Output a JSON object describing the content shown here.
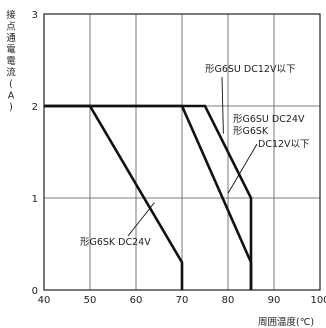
{
  "chart_data": {
    "type": "line",
    "ylabel_chars": [
      "接",
      "点",
      "通",
      "電",
      "電",
      "流",
      "(",
      "A",
      ")"
    ],
    "xlabel": "周囲温度(℃)",
    "xlim": [
      40,
      100
    ],
    "ylim": [
      0,
      3
    ],
    "x_ticks": [
      40,
      50,
      60,
      70,
      80,
      90,
      100
    ],
    "y_ticks": [
      0,
      1,
      2,
      3
    ],
    "grid": true,
    "series": [
      {
        "name": "形G6SK DC24V",
        "x": [
          40,
          50,
          70,
          70
        ],
        "y": [
          2,
          2,
          0.3,
          0
        ]
      },
      {
        "name": "形G6SU DC24V / 形G6SK DC12V以下",
        "x": [
          40,
          70,
          85,
          85
        ],
        "y": [
          2,
          2,
          0.3,
          0
        ]
      },
      {
        "name": "形G6SU DC12V以下",
        "x": [
          40,
          75,
          85,
          85
        ],
        "y": [
          2,
          2,
          1,
          0
        ]
      }
    ],
    "annotations": [
      {
        "text": "形G6SU  DC12V以下",
        "target_x": 79,
        "target_y": 1.7
      },
      {
        "text": "形G6SU  DC24V",
        "target_x": null,
        "target_y": null
      },
      {
        "text": "形G6SK",
        "target_x": null,
        "target_y": null
      },
      {
        "text": "DC12V以下",
        "target_x": 80,
        "target_y": 1.05
      },
      {
        "text": "形G6SK  DC24V",
        "target_x": 64,
        "target_y": 0.95
      }
    ]
  }
}
